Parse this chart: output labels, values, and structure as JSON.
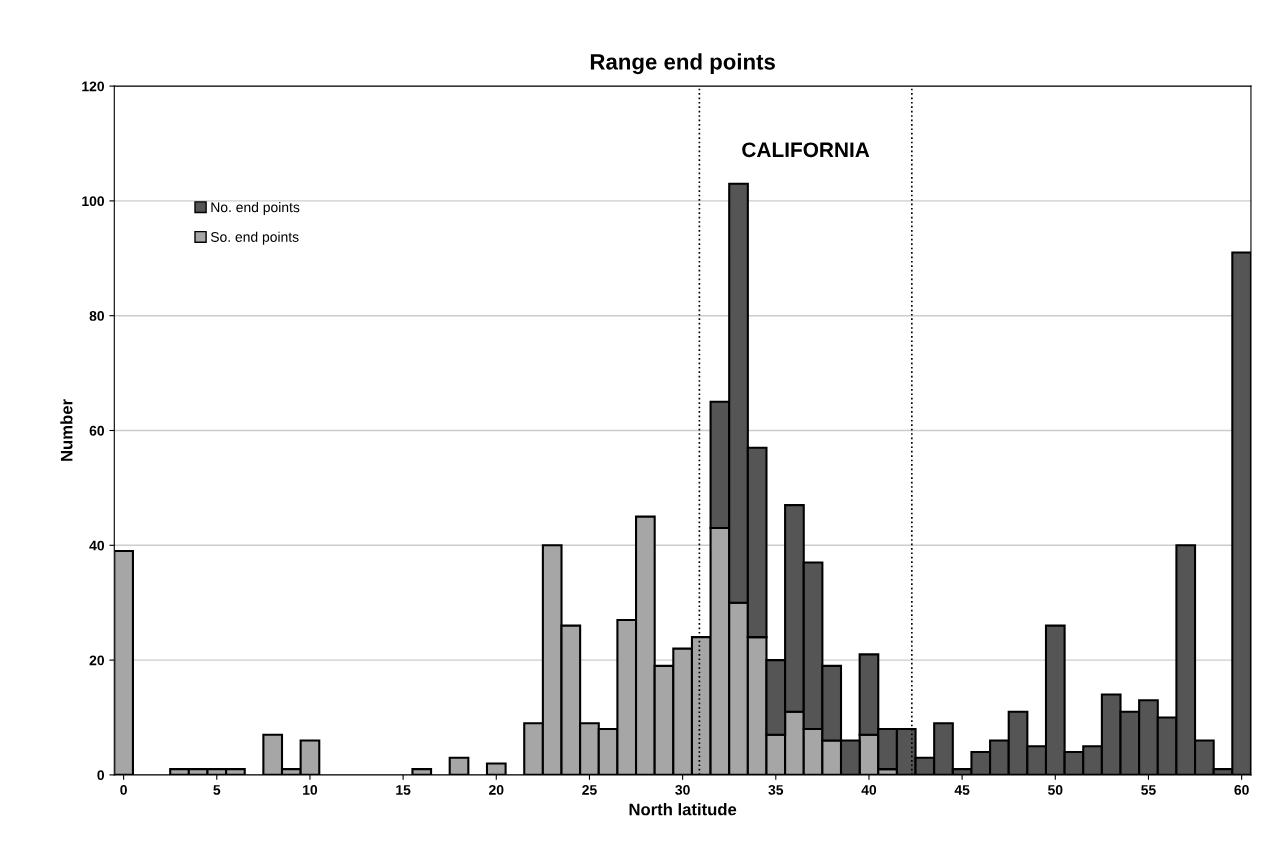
{
  "chart_data": {
    "type": "bar",
    "title": "Range end points",
    "xlabel": "North latitude",
    "ylabel": "Number",
    "x": [
      0,
      1,
      2,
      3,
      4,
      5,
      6,
      7,
      8,
      9,
      10,
      11,
      12,
      13,
      14,
      15,
      16,
      17,
      18,
      19,
      20,
      21,
      22,
      23,
      24,
      25,
      26,
      27,
      28,
      29,
      30,
      31,
      32,
      33,
      34,
      35,
      36,
      37,
      38,
      39,
      40,
      41,
      42,
      43,
      44,
      45,
      46,
      47,
      48,
      49,
      50,
      51,
      52,
      53,
      54,
      55,
      56,
      57,
      58,
      59,
      60
    ],
    "stacked": true,
    "series": [
      {
        "name": "So. end points",
        "color": "#a6a6a6",
        "values": [
          39,
          null,
          null,
          1,
          1,
          1,
          1,
          null,
          7,
          1,
          6,
          null,
          null,
          null,
          null,
          null,
          1,
          null,
          3,
          null,
          2,
          null,
          9,
          40,
          26,
          9,
          8,
          27,
          45,
          19,
          22,
          24,
          43,
          30,
          24,
          7,
          11,
          8,
          6,
          null,
          7,
          1,
          null,
          null,
          null,
          null,
          null,
          null,
          null,
          null,
          null,
          null,
          null,
          null,
          null,
          null,
          null,
          null,
          null,
          null,
          null
        ]
      },
      {
        "name": "No. end points",
        "color": "#555555",
        "values": [
          null,
          null,
          null,
          null,
          null,
          null,
          null,
          null,
          null,
          null,
          null,
          null,
          null,
          null,
          null,
          null,
          null,
          null,
          null,
          null,
          null,
          null,
          null,
          null,
          null,
          null,
          null,
          null,
          null,
          null,
          null,
          null,
          22,
          73,
          33,
          13,
          36,
          29,
          13,
          6,
          14,
          7,
          8,
          3,
          9,
          1,
          4,
          6,
          11,
          5,
          26,
          4,
          5,
          14,
          11,
          13,
          10,
          40,
          6,
          1,
          91
        ]
      }
    ],
    "xlim": [
      -0.5,
      60.5
    ],
    "xticks": [
      0,
      5,
      10,
      15,
      20,
      25,
      30,
      35,
      40,
      45,
      50,
      55,
      60
    ],
    "ylim": [
      0,
      120
    ],
    "yticks": [
      0,
      20,
      40,
      60,
      80,
      100,
      120
    ],
    "ref_lines": [
      {
        "axis": "x",
        "value": 30.9,
        "line_style": "dotted",
        "color": "#000000"
      },
      {
        "axis": "x",
        "value": 42.3,
        "line_style": "dotted",
        "color": "#000000"
      }
    ],
    "annotations": [
      "CALIFORNIA"
    ],
    "grid": "y",
    "legend": "top left"
  }
}
